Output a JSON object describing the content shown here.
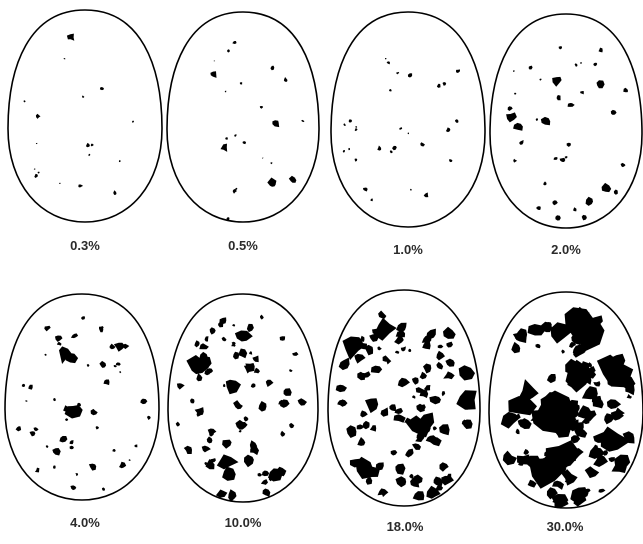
{
  "figure": {
    "panels": [
      {
        "label": "0.3%",
        "coverage_percent": 0.3
      },
      {
        "label": "0.5%",
        "coverage_percent": 0.5
      },
      {
        "label": "1.0%",
        "coverage_percent": 1.0
      },
      {
        "label": "2.0%",
        "coverage_percent": 2.0
      },
      {
        "label": "4.0%",
        "coverage_percent": 4.0
      },
      {
        "label": "10.0%",
        "coverage_percent": 10.0
      },
      {
        "label": "18.0%",
        "coverage_percent": 18.0
      },
      {
        "label": "30.0%",
        "coverage_percent": 30.0
      }
    ],
    "colors": {
      "outline": "#000000",
      "spots": "#000000",
      "background": "#ffffff",
      "label": "#2b2b2b"
    }
  }
}
